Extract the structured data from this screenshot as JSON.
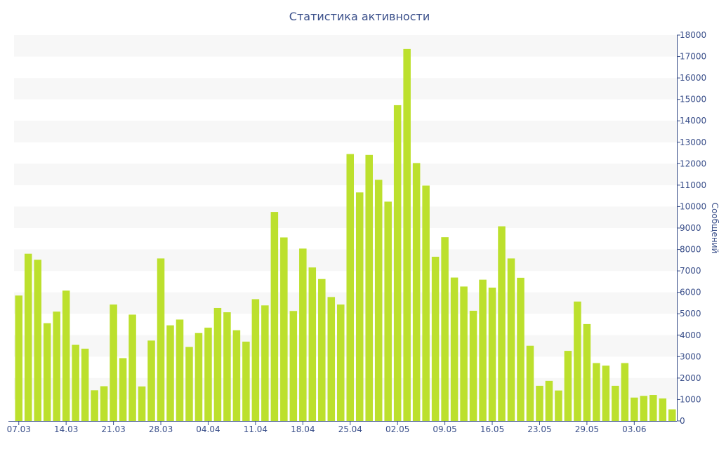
{
  "chart_data": {
    "type": "bar",
    "title": "Статистика активности",
    "xlabel": "",
    "ylabel": "Сообщений",
    "ylim": [
      0,
      18000
    ],
    "y_ticks": [
      0,
      1000,
      2000,
      3000,
      4000,
      5000,
      6000,
      7000,
      8000,
      9000,
      10000,
      11000,
      12000,
      13000,
      14000,
      15000,
      16000,
      17000,
      18000
    ],
    "x_tick_labels": [
      {
        "index": 0,
        "label": "07.03"
      },
      {
        "index": 5,
        "label": "14.03"
      },
      {
        "index": 10,
        "label": "21.03"
      },
      {
        "index": 15,
        "label": "28.03"
      },
      {
        "index": 20,
        "label": "04.04"
      },
      {
        "index": 25,
        "label": "11.04"
      },
      {
        "index": 30,
        "label": "18.04"
      },
      {
        "index": 35,
        "label": "25.04"
      },
      {
        "index": 40,
        "label": "02.05"
      },
      {
        "index": 45,
        "label": "09.05"
      },
      {
        "index": 50,
        "label": "16.05"
      },
      {
        "index": 55,
        "label": "23.05"
      },
      {
        "index": 60,
        "label": "29.05"
      },
      {
        "index": 65,
        "label": "03.06"
      }
    ],
    "y_axis_side": "right",
    "grid": "alternating horizontal bands",
    "bar_color": "#bce02d",
    "band_color": "#f7f7f7",
    "text_color": "#3a4f8a",
    "values": [
      5850,
      7800,
      7520,
      4560,
      5100,
      6080,
      3550,
      3370,
      1430,
      1620,
      5430,
      2930,
      4960,
      1610,
      3750,
      7580,
      4460,
      4730,
      3450,
      4100,
      4350,
      5270,
      5070,
      4230,
      3700,
      5680,
      5390,
      9750,
      8560,
      5130,
      8040,
      7160,
      6620,
      5780,
      5430,
      12450,
      10660,
      12410,
      11250,
      10230,
      14730,
      17350,
      12030,
      10980,
      7660,
      8570,
      6690,
      6270,
      5140,
      6590,
      6220,
      9080,
      7580,
      6680,
      3510,
      1640,
      1870,
      1420,
      3270,
      5570,
      4520,
      2700,
      2580,
      1640,
      2700,
      1090,
      1170,
      1210,
      1050,
      540
    ]
  }
}
